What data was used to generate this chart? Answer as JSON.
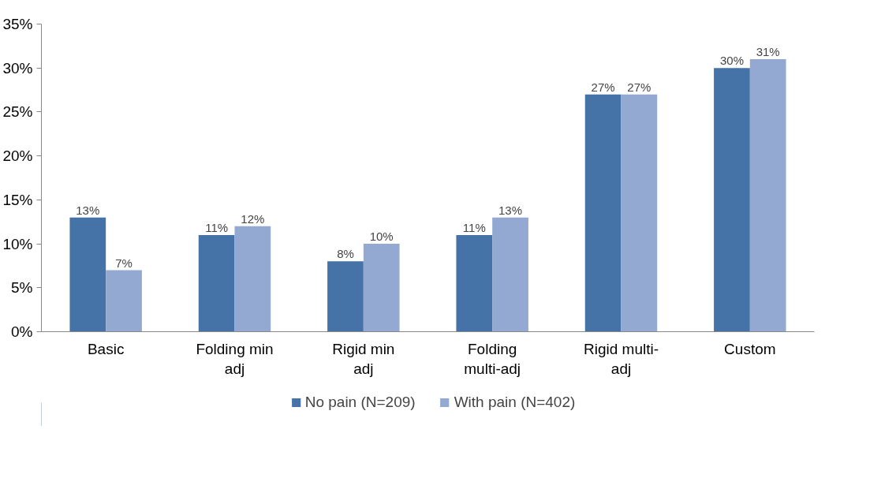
{
  "chart_data": {
    "type": "bar",
    "categories": [
      "Basic",
      "Folding min adj",
      "Rigid min adj",
      "Folding multi-adj",
      "Rigid multi-adj",
      "Custom"
    ],
    "series": [
      {
        "name": "No pain (N=209)",
        "color": "#4573a7",
        "values": [
          13,
          11,
          8,
          11,
          27,
          30
        ],
        "value_labels": [
          "13%",
          "11%",
          "8%",
          "11%",
          "27%",
          "30%"
        ]
      },
      {
        "name": "With pain (N=402)",
        "color": "#94a9d1",
        "values": [
          7,
          12,
          10,
          13,
          27,
          31
        ],
        "value_labels": [
          "7%",
          "12%",
          "10%",
          "13%",
          "27%",
          "31%"
        ]
      }
    ],
    "ylim": [
      0,
      35
    ],
    "yticks": [
      {
        "value": 0,
        "label": "0%"
      },
      {
        "value": 5,
        "label": "5%"
      },
      {
        "value": 10,
        "label": "10%"
      },
      {
        "value": 15,
        "label": "15%"
      },
      {
        "value": 20,
        "label": "20%"
      },
      {
        "value": 25,
        "label": "25%"
      },
      {
        "value": 30,
        "label": "30%"
      },
      {
        "value": 35,
        "label": "35%"
      }
    ],
    "grid": false,
    "legend": "bottom"
  }
}
